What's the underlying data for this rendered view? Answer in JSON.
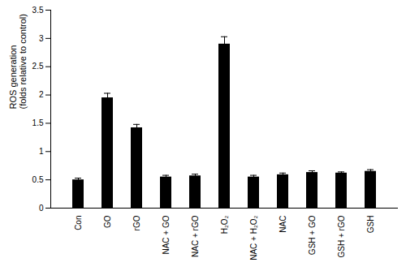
{
  "chart_data": {
    "type": "bar",
    "categories": [
      "Con",
      "GO",
      "rGO",
      "NAC + GO",
      "NAC + rGO",
      "H₂O₂",
      "NAC + H₂O₂",
      "NAC",
      "GSH + GO",
      "GSH + rGO",
      "GSH"
    ],
    "values": [
      0.5,
      1.95,
      1.42,
      0.55,
      0.57,
      2.9,
      0.55,
      0.59,
      0.63,
      0.62,
      0.65
    ],
    "errors": [
      0.03,
      0.08,
      0.06,
      0.03,
      0.03,
      0.13,
      0.03,
      0.03,
      0.03,
      0.02,
      0.03
    ],
    "color": "#000000",
    "ylabel": "ROS generation\n(folds relative to control)",
    "ylim": [
      0,
      3.5
    ],
    "yticks": [
      0,
      0.5,
      1,
      1.5,
      2,
      2.5,
      3,
      3.5
    ],
    "grid": false
  }
}
